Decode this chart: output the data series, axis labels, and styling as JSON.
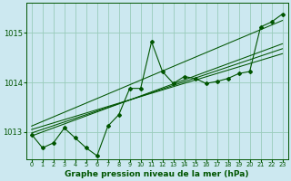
{
  "title": "Graphe pression niveau de la mer (hPa)",
  "bg_color": "#cce8f0",
  "grid_color": "#99ccbb",
  "line_color": "#005500",
  "x_ticks": [
    0,
    1,
    2,
    3,
    4,
    5,
    6,
    7,
    8,
    9,
    10,
    11,
    12,
    13,
    14,
    15,
    16,
    17,
    18,
    19,
    20,
    21,
    22,
    23
  ],
  "y_ticks": [
    1013,
    1014,
    1015
  ],
  "ylim": [
    1012.45,
    1015.6
  ],
  "xlim": [
    -0.5,
    23.5
  ],
  "series": [
    1012.95,
    1012.68,
    1012.78,
    1013.08,
    1012.88,
    1012.68,
    1012.52,
    1013.12,
    1013.35,
    1013.88,
    1013.88,
    1014.82,
    1014.22,
    1013.98,
    1014.12,
    1014.08,
    1013.98,
    1014.02,
    1014.08,
    1014.18,
    1014.22,
    1015.12,
    1015.22,
    1015.38
  ],
  "trend_lines": [
    [
      1012.92,
      1014.78
    ],
    [
      1012.98,
      1014.68
    ],
    [
      1013.05,
      1014.58
    ],
    [
      1013.12,
      1015.25
    ]
  ],
  "tick_fontsize": 5.5,
  "xlabel_fontsize": 6.5
}
